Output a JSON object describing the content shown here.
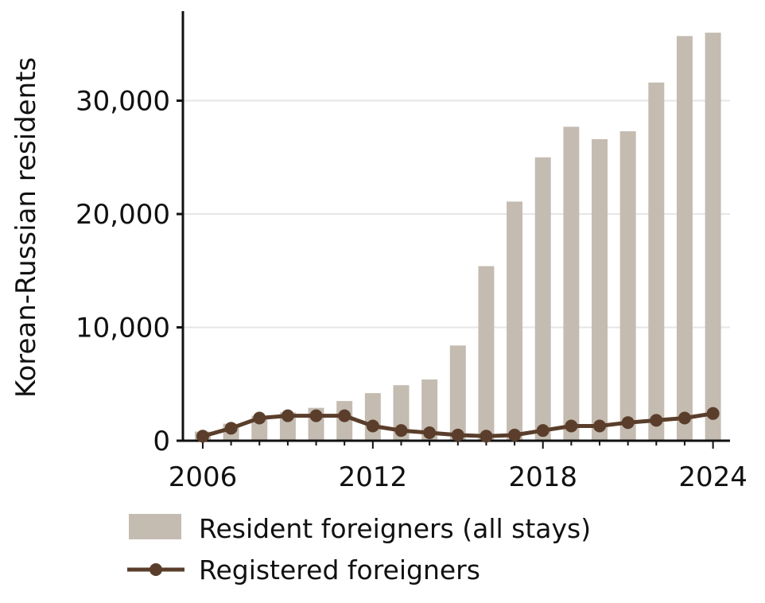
{
  "chart_data": {
    "type": "bar",
    "ylabel": "Korean-Russian residents",
    "xlabel": "",
    "title": "",
    "x": [
      2006,
      2007,
      2008,
      2009,
      2010,
      2011,
      2012,
      2013,
      2014,
      2015,
      2016,
      2017,
      2018,
      2019,
      2020,
      2021,
      2022,
      2023,
      2024
    ],
    "x_ticks": [
      2006,
      2012,
      2018,
      2024
    ],
    "y_ticks": [
      0,
      10000,
      20000,
      30000
    ],
    "y_tick_labels": [
      "0",
      "10,000",
      "20,000",
      "30,000"
    ],
    "x_tick_labels": [
      "2006",
      "2012",
      "2018",
      "2024"
    ],
    "ylim": [
      0,
      37900
    ],
    "xlim": [
      2005.3,
      2024.6
    ],
    "grid": "horizontal",
    "legend_position": "bottom",
    "series": [
      {
        "name": "Resident foreigners (all stays)",
        "kind": "bar",
        "color": "#c4bbb1",
        "values": [
          800,
          1500,
          2200,
          2500,
          2900,
          3500,
          4200,
          4900,
          5400,
          8400,
          15400,
          21100,
          25000,
          27700,
          26600,
          27300,
          31600,
          35700,
          36000
        ]
      },
      {
        "name": "Registered foreigners",
        "kind": "line",
        "color": "#5a3e2b",
        "values": [
          400,
          1100,
          2000,
          2200,
          2200,
          2200,
          1300,
          900,
          700,
          500,
          400,
          500,
          900,
          1300,
          1300,
          1600,
          1800,
          2000,
          2400
        ]
      }
    ]
  }
}
